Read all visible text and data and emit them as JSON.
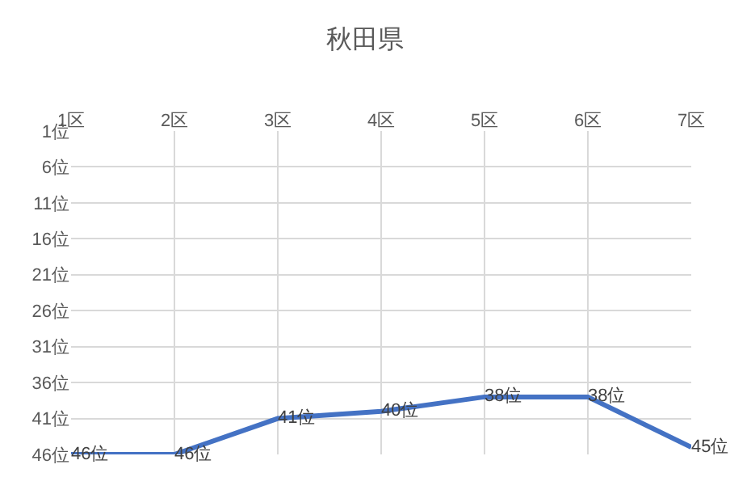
{
  "chart_data": {
    "type": "line",
    "title": "秋田県",
    "categories": [
      "1区",
      "2区",
      "3区",
      "4区",
      "5区",
      "6区",
      "7区"
    ],
    "series": [
      {
        "color": "#4472c4",
        "values": [
          46,
          46,
          41,
          40,
          38,
          38,
          45
        ],
        "value_labels": [
          "46位",
          "46位",
          "41位",
          "40位",
          "38位",
          "38位",
          "45位"
        ]
      }
    ],
    "ylim": [
      46,
      1
    ],
    "yticks": [
      {
        "value": 1,
        "label": "1位"
      },
      {
        "value": 6,
        "label": "6位"
      },
      {
        "value": 11,
        "label": "11位"
      },
      {
        "value": 16,
        "label": "16位"
      },
      {
        "value": 21,
        "label": "21位"
      },
      {
        "value": 26,
        "label": "26位"
      },
      {
        "value": 31,
        "label": "31位"
      },
      {
        "value": 36,
        "label": "36位"
      },
      {
        "value": 41,
        "label": "41位"
      },
      {
        "value": 46,
        "label": "46位"
      }
    ],
    "grid": true,
    "marker": "none",
    "line_style": "solid",
    "legend": false
  }
}
